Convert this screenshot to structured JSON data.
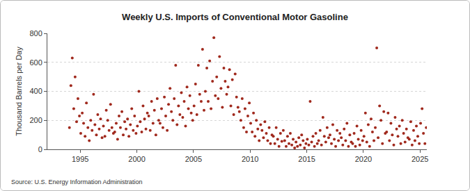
{
  "chart_data": {
    "type": "scatter",
    "title": "Weekly U.S. Imports of Conventional Motor Gasoline",
    "y_label": "Thousand Barrels per Day",
    "annotations": [
      "Source: U.S. Energy Information Administration"
    ],
    "color": "#a0291d",
    "marker": "circle",
    "grid": true,
    "xlim": [
      1992.1,
      2025.6
    ],
    "xticks": [
      1995,
      2000,
      2005,
      2010,
      2015,
      2020,
      2025
    ],
    "ylim": [
      0,
      800
    ],
    "yticks": [
      0,
      200,
      400,
      600,
      800
    ],
    "x": [
      1994.05,
      1994.18,
      1994.3,
      1994.43,
      1994.55,
      1994.68,
      1994.8,
      1994.93,
      1995.05,
      1995.18,
      1995.3,
      1995.43,
      1995.55,
      1995.68,
      1995.8,
      1995.93,
      1996.05,
      1996.18,
      1996.3,
      1996.43,
      1996.55,
      1996.68,
      1996.8,
      1996.93,
      1997.05,
      1997.18,
      1997.3,
      1997.43,
      1997.55,
      1997.68,
      1997.8,
      1997.93,
      1998.05,
      1998.18,
      1998.3,
      1998.43,
      1998.55,
      1998.68,
      1998.8,
      1998.93,
      1999.05,
      1999.18,
      1999.3,
      1999.43,
      1999.55,
      1999.68,
      1999.8,
      1999.93,
      2000.05,
      2000.18,
      2000.3,
      2000.43,
      2000.55,
      2000.68,
      2000.8,
      2000.93,
      2001.05,
      2001.18,
      2001.3,
      2001.43,
      2001.55,
      2001.68,
      2001.8,
      2001.93,
      2002.05,
      2002.18,
      2002.3,
      2002.43,
      2002.55,
      2002.68,
      2002.8,
      2002.93,
      2003.05,
      2003.18,
      2003.3,
      2003.43,
      2003.55,
      2003.68,
      2003.8,
      2003.93,
      2004.05,
      2004.18,
      2004.3,
      2004.43,
      2004.55,
      2004.68,
      2004.8,
      2004.93,
      2005.05,
      2005.18,
      2005.3,
      2005.43,
      2005.55,
      2005.68,
      2005.8,
      2005.93,
      2006.05,
      2006.18,
      2006.3,
      2006.43,
      2006.55,
      2006.68,
      2006.8,
      2006.93,
      2007.05,
      2007.18,
      2007.3,
      2007.43,
      2007.55,
      2007.68,
      2007.8,
      2007.93,
      2008.05,
      2008.18,
      2008.3,
      2008.43,
      2008.55,
      2008.68,
      2008.8,
      2008.93,
      2009.05,
      2009.18,
      2009.3,
      2009.43,
      2009.55,
      2009.68,
      2009.8,
      2009.93,
      2010.05,
      2010.18,
      2010.3,
      2010.43,
      2010.55,
      2010.68,
      2010.8,
      2010.93,
      2011.05,
      2011.18,
      2011.3,
      2011.43,
      2011.55,
      2011.68,
      2011.8,
      2011.93,
      2012.05,
      2012.18,
      2012.3,
      2012.43,
      2012.55,
      2012.68,
      2012.8,
      2012.93,
      2013.05,
      2013.18,
      2013.3,
      2013.43,
      2013.55,
      2013.68,
      2013.8,
      2013.93,
      2014.05,
      2014.18,
      2014.3,
      2014.43,
      2014.55,
      2014.68,
      2014.8,
      2014.93,
      2015.05,
      2015.18,
      2015.3,
      2015.43,
      2015.55,
      2015.68,
      2015.8,
      2015.93,
      2016.05,
      2016.18,
      2016.3,
      2016.43,
      2016.55,
      2016.68,
      2016.8,
      2016.93,
      2017.05,
      2017.18,
      2017.3,
      2017.43,
      2017.55,
      2017.68,
      2017.8,
      2017.93,
      2018.05,
      2018.18,
      2018.3,
      2018.43,
      2018.55,
      2018.68,
      2018.8,
      2018.93,
      2019.05,
      2019.18,
      2019.3,
      2019.43,
      2019.55,
      2019.68,
      2019.8,
      2019.93,
      2020.05,
      2020.18,
      2020.3,
      2020.43,
      2020.55,
      2020.68,
      2020.8,
      2020.93,
      2021.05,
      2021.18,
      2021.3,
      2021.43,
      2021.55,
      2021.68,
      2021.8,
      2021.93,
      2022.05,
      2022.18,
      2022.3,
      2022.43,
      2022.55,
      2022.68,
      2022.8,
      2022.93,
      2023.05,
      2023.18,
      2023.3,
      2023.43,
      2023.55,
      2023.68,
      2023.8,
      2023.93,
      2024.05,
      2024.18,
      2024.3,
      2024.43,
      2024.55,
      2024.68,
      2024.8,
      2024.93,
      2025.05,
      2025.18,
      2025.3,
      2025.43,
      2025.55
    ],
    "values": [
      150,
      440,
      630,
      280,
      500,
      190,
      350,
      230,
      110,
      250,
      180,
      90,
      320,
      150,
      60,
      200,
      130,
      380,
      170,
      100,
      240,
      140,
      210,
      80,
      160,
      90,
      270,
      200,
      130,
      310,
      150,
      110,
      120,
      180,
      70,
      230,
      150,
      260,
      100,
      190,
      140,
      210,
      90,
      170,
      280,
      130,
      230,
      110,
      160,
      400,
      190,
      120,
      300,
      210,
      140,
      250,
      230,
      130,
      330,
      180,
      270,
      100,
      350,
      200,
      180,
      280,
      150,
      360,
      230,
      130,
      310,
      420,
      260,
      200,
      350,
      580,
      170,
      300,
      240,
      390,
      220,
      330,
      160,
      430,
      280,
      370,
      250,
      200,
      300,
      450,
      240,
      580,
      380,
      330,
      690,
      270,
      400,
      560,
      330,
      610,
      280,
      470,
      770,
      370,
      500,
      350,
      640,
      420,
      290,
      560,
      470,
      380,
      430,
      550,
      300,
      480,
      240,
      520,
      360,
      290,
      260,
      200,
      350,
      150,
      280,
      120,
      230,
      320,
      180,
      120,
      250,
      90,
      200,
      140,
      60,
      170,
      130,
      80,
      190,
      110,
      60,
      150,
      40,
      100,
      90,
      40,
      150,
      70,
      20,
      110,
      55,
      130,
      60,
      20,
      90,
      40,
      110,
      30,
      70,
      10,
      50,
      20,
      80,
      30,
      100,
      60,
      10,
      40,
      70,
      30,
      330,
      50,
      90,
      20,
      110,
      40,
      60,
      130,
      30,
      220,
      90,
      50,
      150,
      80,
      100,
      40,
      170,
      70,
      20,
      130,
      60,
      110,
      80,
      30,
      140,
      60,
      180,
      20,
      100,
      50,
      40,
      110,
      20,
      160,
      70,
      30,
      130,
      60,
      90,
      250,
      50,
      170,
      20,
      210,
      120,
      60,
      150,
      700,
      80,
      300,
      200,
      40,
      260,
      110,
      120,
      250,
      60,
      180,
      100,
      30,
      220,
      140,
      90,
      160,
      40,
      200,
      110,
      50,
      140,
      80,
      70,
      190,
      30,
      130,
      60,
      160,
      90,
      40,
      180,
      280,
      110,
      40,
      150
    ]
  }
}
